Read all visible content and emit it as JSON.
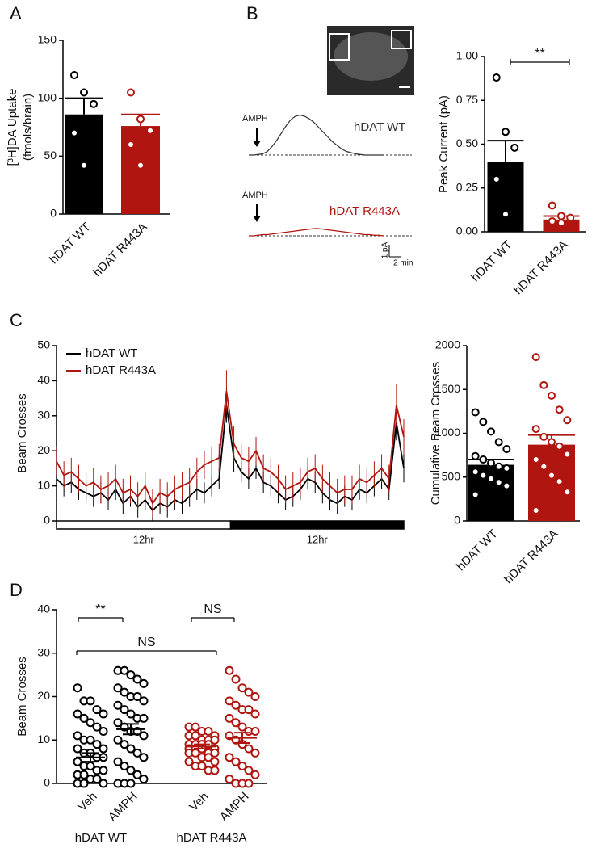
{
  "chart_data": [
    {
      "type": "bar",
      "panel": "A",
      "categories": [
        "hDAT WT",
        "hDAT R443A"
      ],
      "colors": [
        "#000000",
        "#b0160f"
      ],
      "values": [
        86,
        76
      ],
      "errors": [
        14,
        10
      ],
      "points": [
        [
          120,
          105,
          95,
          70,
          42
        ],
        [
          105,
          82,
          72,
          60,
          42
        ]
      ],
      "ylim": [
        0,
        150
      ],
      "yticks": [
        0,
        50,
        100,
        150
      ],
      "ylabel": [
        "[³H]DA Uptake",
        "(fmols/brain)"
      ]
    },
    {
      "type": "trace",
      "panel": "B",
      "series": [
        {
          "name": "hDAT WT",
          "stimulus": "AMPH",
          "color": "#333333",
          "values": [
            0,
            0,
            0.05,
            0.1,
            0.3,
            0.7,
            1.2,
            1.8,
            2.4,
            2.9,
            3.2,
            3.3,
            3.2,
            3.0,
            2.7,
            2.3,
            1.9,
            1.5,
            1.1,
            0.8,
            0.5,
            0.3,
            0.2,
            0.1,
            0.05,
            0,
            0,
            0,
            0,
            0
          ]
        },
        {
          "name": "hDAT R443A",
          "stimulus": "AMPH",
          "color": "#b0160f",
          "values": [
            0,
            0,
            0.05,
            0.1,
            0.1,
            0.15,
            0.2,
            0.25,
            0.3,
            0.35,
            0.4,
            0.45,
            0.5,
            0.55,
            0.6,
            0.6,
            0.55,
            0.5,
            0.45,
            0.4,
            0.35,
            0.3,
            0.25,
            0.2,
            0.15,
            0.1,
            0.1,
            0.05,
            0.05,
            0
          ]
        }
      ],
      "scalebar": [
        "1 pA",
        "2 min"
      ]
    },
    {
      "type": "bar",
      "categories": [
        "hDAT WT",
        "hDAT R443A"
      ],
      "colors": [
        "#000000",
        "#b0160f"
      ],
      "values": [
        0.4,
        0.07
      ],
      "errors": [
        0.12,
        0.02
      ],
      "points": [
        [
          0.88,
          0.57,
          0.48,
          0.3,
          0.1
        ],
        [
          0.15,
          0.09,
          0.08,
          0.06,
          0.05
        ]
      ],
      "ylim": [
        0,
        1
      ],
      "yticks": [
        {
          "value": 0,
          "label": "0.00"
        },
        0.25,
        {
          "value": 0.5,
          "label": "0.50"
        },
        0.75,
        {
          "value": 1,
          "label": "1.00"
        }
      ],
      "ylabel": [
        "Peak Current (pA)"
      ],
      "annotations": [
        "**"
      ]
    },
    {
      "type": "line",
      "panel": "C",
      "legend": "upper left",
      "series": [
        {
          "name": "hDAT WT",
          "color": "#000000",
          "values": [
            12,
            10,
            11,
            9,
            8,
            7,
            8,
            6,
            9,
            5,
            7,
            4,
            6,
            3,
            5,
            4,
            6,
            5,
            7,
            9,
            8,
            10,
            12,
            33,
            18,
            14,
            12,
            15,
            11,
            10,
            8,
            6,
            7,
            9,
            12,
            11,
            8,
            6,
            5,
            7,
            6,
            9,
            8,
            10,
            12,
            9,
            28,
            15
          ],
          "errors": [
            3,
            3,
            3,
            3,
            3,
            3,
            3,
            3,
            3,
            3,
            3,
            3,
            3,
            3,
            3,
            3,
            3,
            3,
            3,
            3,
            3,
            3,
            3,
            5,
            4,
            3,
            3,
            3,
            3,
            3,
            3,
            3,
            3,
            3,
            3,
            3,
            3,
            3,
            3,
            3,
            3,
            3,
            3,
            3,
            3,
            3,
            5,
            4
          ]
        },
        {
          "name": "hDAT R443A",
          "color": "#b0160f",
          "values": [
            17,
            13,
            14,
            12,
            10,
            11,
            9,
            10,
            12,
            8,
            9,
            7,
            10,
            5,
            8,
            7,
            9,
            10,
            11,
            14,
            16,
            17,
            18,
            37,
            22,
            18,
            17,
            20,
            15,
            14,
            12,
            9,
            10,
            11,
            14,
            15,
            12,
            10,
            8,
            9,
            9,
            12,
            11,
            13,
            15,
            12,
            33,
            24
          ],
          "errors": [
            4,
            4,
            4,
            4,
            4,
            4,
            4,
            4,
            4,
            4,
            4,
            4,
            4,
            4,
            4,
            4,
            4,
            4,
            4,
            4,
            4,
            4,
            4,
            6,
            5,
            4,
            4,
            4,
            4,
            4,
            4,
            4,
            4,
            4,
            4,
            4,
            4,
            4,
            4,
            4,
            4,
            4,
            4,
            4,
            4,
            4,
            6,
            5
          ]
        }
      ],
      "light_dark": [
        "12hr",
        "12hr"
      ],
      "ylim": [
        0,
        50
      ],
      "yticks": [
        0,
        10,
        20,
        30,
        40,
        50
      ],
      "ylabel": [
        "Beam Crosses"
      ]
    },
    {
      "type": "bar",
      "categories": [
        "hDAT WT",
        "hDAT R443A"
      ],
      "colors": [
        "#000000",
        "#b0160f"
      ],
      "values": [
        640,
        870
      ],
      "errors": [
        60,
        110
      ],
      "points": [
        [
          1240,
          1130,
          1020,
          900,
          820,
          740,
          700,
          660,
          620,
          600,
          560,
          520,
          480,
          440,
          400,
          300
        ],
        [
          1870,
          1550,
          1430,
          1270,
          1150,
          1050,
          960,
          900,
          850,
          760,
          700,
          620,
          520,
          450,
          330,
          120
        ]
      ],
      "ylim": [
        0,
        2000
      ],
      "yticks": [
        0,
        500,
        1000,
        1500,
        2000
      ],
      "ylabel": [
        "Cumulative Beam Crosses"
      ]
    },
    {
      "type": "dotplot",
      "panel": "D",
      "categories": [
        "Veh",
        "AMPH",
        "Veh",
        "AMPH"
      ],
      "groups": [
        "hDAT WT",
        "hDAT R443A"
      ],
      "colors": [
        "#000000",
        "#000000",
        "#b0160f",
        "#b0160f"
      ],
      "points": [
        [
          22,
          19,
          19,
          17,
          16,
          16,
          15,
          14,
          13,
          12,
          11,
          10,
          10,
          9,
          8,
          8,
          7,
          7,
          6,
          6,
          5,
          4,
          4,
          3,
          3,
          2,
          2,
          1,
          1,
          0,
          0,
          0
        ],
        [
          26,
          26,
          25,
          24,
          23,
          22,
          21,
          20,
          20,
          19,
          18,
          17,
          16,
          15,
          15,
          14,
          13,
          12,
          12,
          11,
          10,
          9,
          8,
          7,
          6,
          5,
          4,
          3,
          2,
          1,
          0,
          0,
          0
        ],
        [
          13,
          13,
          12,
          12,
          11,
          11,
          11,
          10,
          10,
          10,
          9,
          9,
          9,
          9,
          8,
          8,
          8,
          8,
          7,
          7,
          7,
          7,
          6,
          6,
          5,
          5,
          4,
          4,
          3,
          3
        ],
        [
          26,
          24,
          22,
          21,
          20,
          19,
          18,
          17,
          17,
          16,
          15,
          14,
          13,
          12,
          12,
          11,
          10,
          9,
          8,
          7,
          6,
          5,
          4,
          3,
          2,
          1,
          0,
          0,
          0
        ]
      ],
      "means": [
        6,
        12.5,
        8.5,
        10.5
      ],
      "errors": [
        1,
        1.2,
        0.5,
        1.2
      ],
      "ylim": [
        0,
        40
      ],
      "yticks": [
        0,
        10,
        20,
        30,
        40
      ],
      "ylabel": [
        "Beam Crosses"
      ],
      "annotations": [
        "**",
        "NS",
        "NS"
      ]
    }
  ]
}
